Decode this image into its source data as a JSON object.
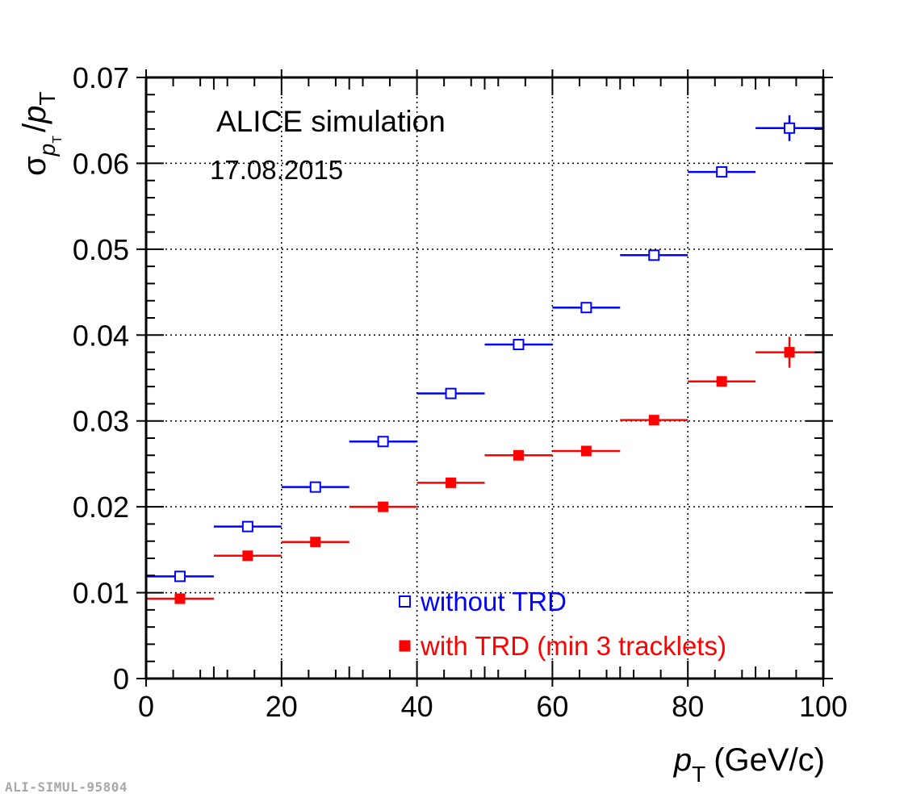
{
  "footer": {
    "id_label": "ALI-SIMUL-95804"
  },
  "chart_data": {
    "type": "scatter",
    "title": "",
    "annotations": [
      "ALICE simulation",
      "17.08.2015"
    ],
    "xlabel": {
      "symbol": "p",
      "subscript": "T",
      "unit": "(GeV/c)"
    },
    "ylabel": {
      "symbol": "σ",
      "sub_symbol": "p",
      "sub_sub": "T",
      "slash": "/",
      "denominator": "p",
      "den_sub": "T"
    },
    "xlim": [
      0,
      100
    ],
    "ylim": [
      0,
      0.07
    ],
    "x_ticks": [
      0,
      20,
      40,
      60,
      80,
      100
    ],
    "x_tick_labels": [
      "0",
      "20",
      "40",
      "60",
      "80",
      "100"
    ],
    "y_ticks": [
      0,
      0.01,
      0.02,
      0.03,
      0.04,
      0.05,
      0.06,
      0.07
    ],
    "y_tick_labels": [
      "0",
      "0.01",
      "0.02",
      "0.03",
      "0.04",
      "0.05",
      "0.06",
      "0.07"
    ],
    "grid": true,
    "legend_position": "bottom-center",
    "series": [
      {
        "name": "without TRD",
        "marker": "open-square",
        "color": "#0000ff",
        "x": [
          5,
          15,
          25,
          35,
          45,
          55,
          65,
          75,
          85,
          95
        ],
        "x_err": [
          5,
          5,
          5,
          5,
          5,
          5,
          5,
          5,
          5,
          5
        ],
        "y": [
          0.0119,
          0.0177,
          0.0223,
          0.0276,
          0.0332,
          0.0389,
          0.0432,
          0.0493,
          0.059,
          0.0641
        ],
        "y_err": [
          0.0002,
          0.0002,
          0.0002,
          0.0002,
          0.0002,
          0.0003,
          0.0003,
          0.0003,
          0.0006,
          0.0015
        ]
      },
      {
        "name": "with TRD (min 3 tracklets)",
        "marker": "filled-square",
        "color": "#ff0000",
        "x": [
          5,
          15,
          25,
          35,
          45,
          55,
          65,
          75,
          85,
          95
        ],
        "x_err": [
          5,
          5,
          5,
          5,
          5,
          5,
          5,
          5,
          5,
          5
        ],
        "y": [
          0.0093,
          0.0143,
          0.0159,
          0.02,
          0.0228,
          0.026,
          0.0265,
          0.0301,
          0.0346,
          0.038
        ],
        "y_err": [
          0.0001,
          0.0002,
          0.0002,
          0.0002,
          0.0002,
          0.0002,
          0.0002,
          0.0002,
          0.0006,
          0.0018
        ]
      }
    ]
  }
}
